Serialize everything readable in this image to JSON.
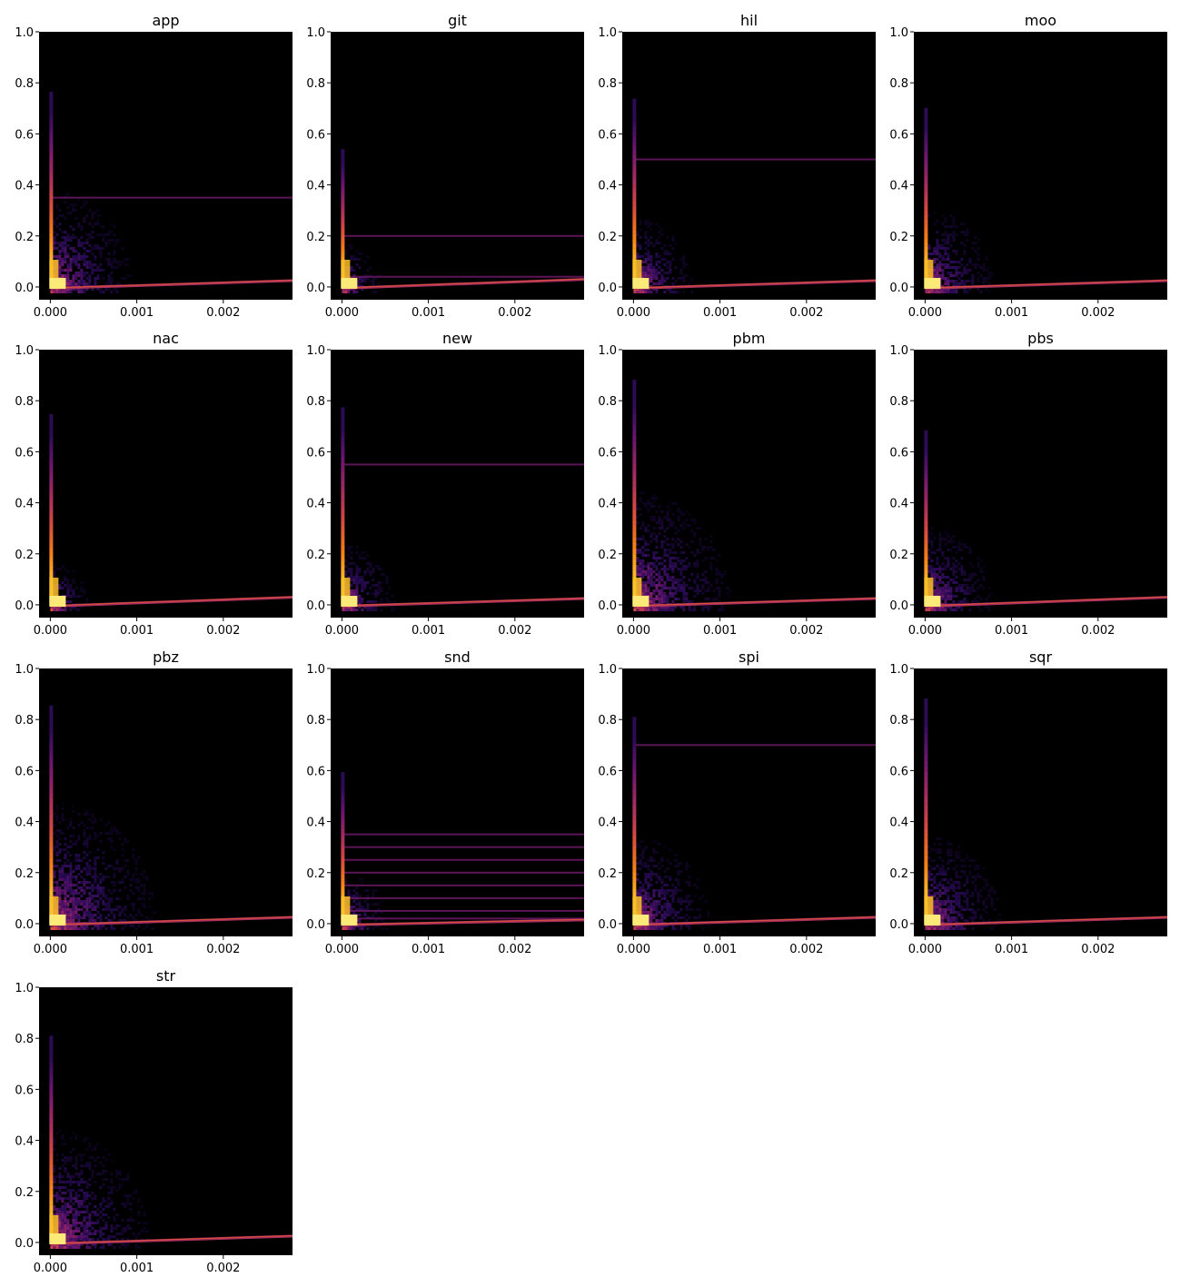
{
  "chart_data": {
    "type": "heatmap",
    "layout": "small-multiples",
    "colormap": "inferno",
    "background_color": "#000000",
    "x_range": [
      -0.00013,
      0.0028
    ],
    "y_range": [
      -0.05,
      1.0
    ],
    "x_ticks": [
      0,
      0.001,
      0.002
    ],
    "x_tick_labels": [
      "0.000",
      "0.001",
      "0.002"
    ],
    "y_ticks": [
      0,
      0.2,
      0.4,
      0.6,
      0.8,
      1.0
    ],
    "y_tick_labels": [
      "0.0",
      "0.2",
      "0.4",
      "0.6",
      "0.8",
      "1.0"
    ],
    "panels": [
      {
        "title": "app",
        "spread": 0.22,
        "ymax": 0.85,
        "floor": 0.03,
        "bands": [
          0.35
        ]
      },
      {
        "title": "git",
        "spread": 0.1,
        "ymax": 0.6,
        "floor": 0.035,
        "bands": [
          0.04,
          0.2
        ]
      },
      {
        "title": "hil",
        "spread": 0.16,
        "ymax": 0.82,
        "floor": 0.03,
        "bands": [
          0.5
        ]
      },
      {
        "title": "moo",
        "spread": 0.18,
        "ymax": 0.78,
        "floor": 0.03,
        "bands": []
      },
      {
        "title": "nac",
        "spread": 0.1,
        "ymax": 0.83,
        "floor": 0.035,
        "bands": []
      },
      {
        "title": "new",
        "spread": 0.14,
        "ymax": 0.86,
        "floor": 0.03,
        "bands": [
          0.55
        ]
      },
      {
        "title": "pbm",
        "spread": 0.26,
        "ymax": 0.98,
        "floor": 0.03,
        "bands": []
      },
      {
        "title": "pbs",
        "spread": 0.18,
        "ymax": 0.76,
        "floor": 0.035,
        "bands": []
      },
      {
        "title": "pbz",
        "spread": 0.28,
        "ymax": 0.95,
        "floor": 0.03,
        "bands": []
      },
      {
        "title": "snd",
        "spread": 0.12,
        "ymax": 0.66,
        "floor": 0.02,
        "bands": [
          0.35,
          0.3,
          0.25,
          0.2,
          0.15,
          0.1,
          0.05,
          0.02
        ]
      },
      {
        "title": "spi",
        "spread": 0.2,
        "ymax": 0.9,
        "floor": 0.03,
        "bands": [
          0.7
        ]
      },
      {
        "title": "sqr",
        "spread": 0.2,
        "ymax": 0.98,
        "floor": 0.03,
        "bands": []
      },
      {
        "title": "str",
        "spread": 0.26,
        "ymax": 0.9,
        "floor": 0.03,
        "bands": []
      }
    ]
  }
}
